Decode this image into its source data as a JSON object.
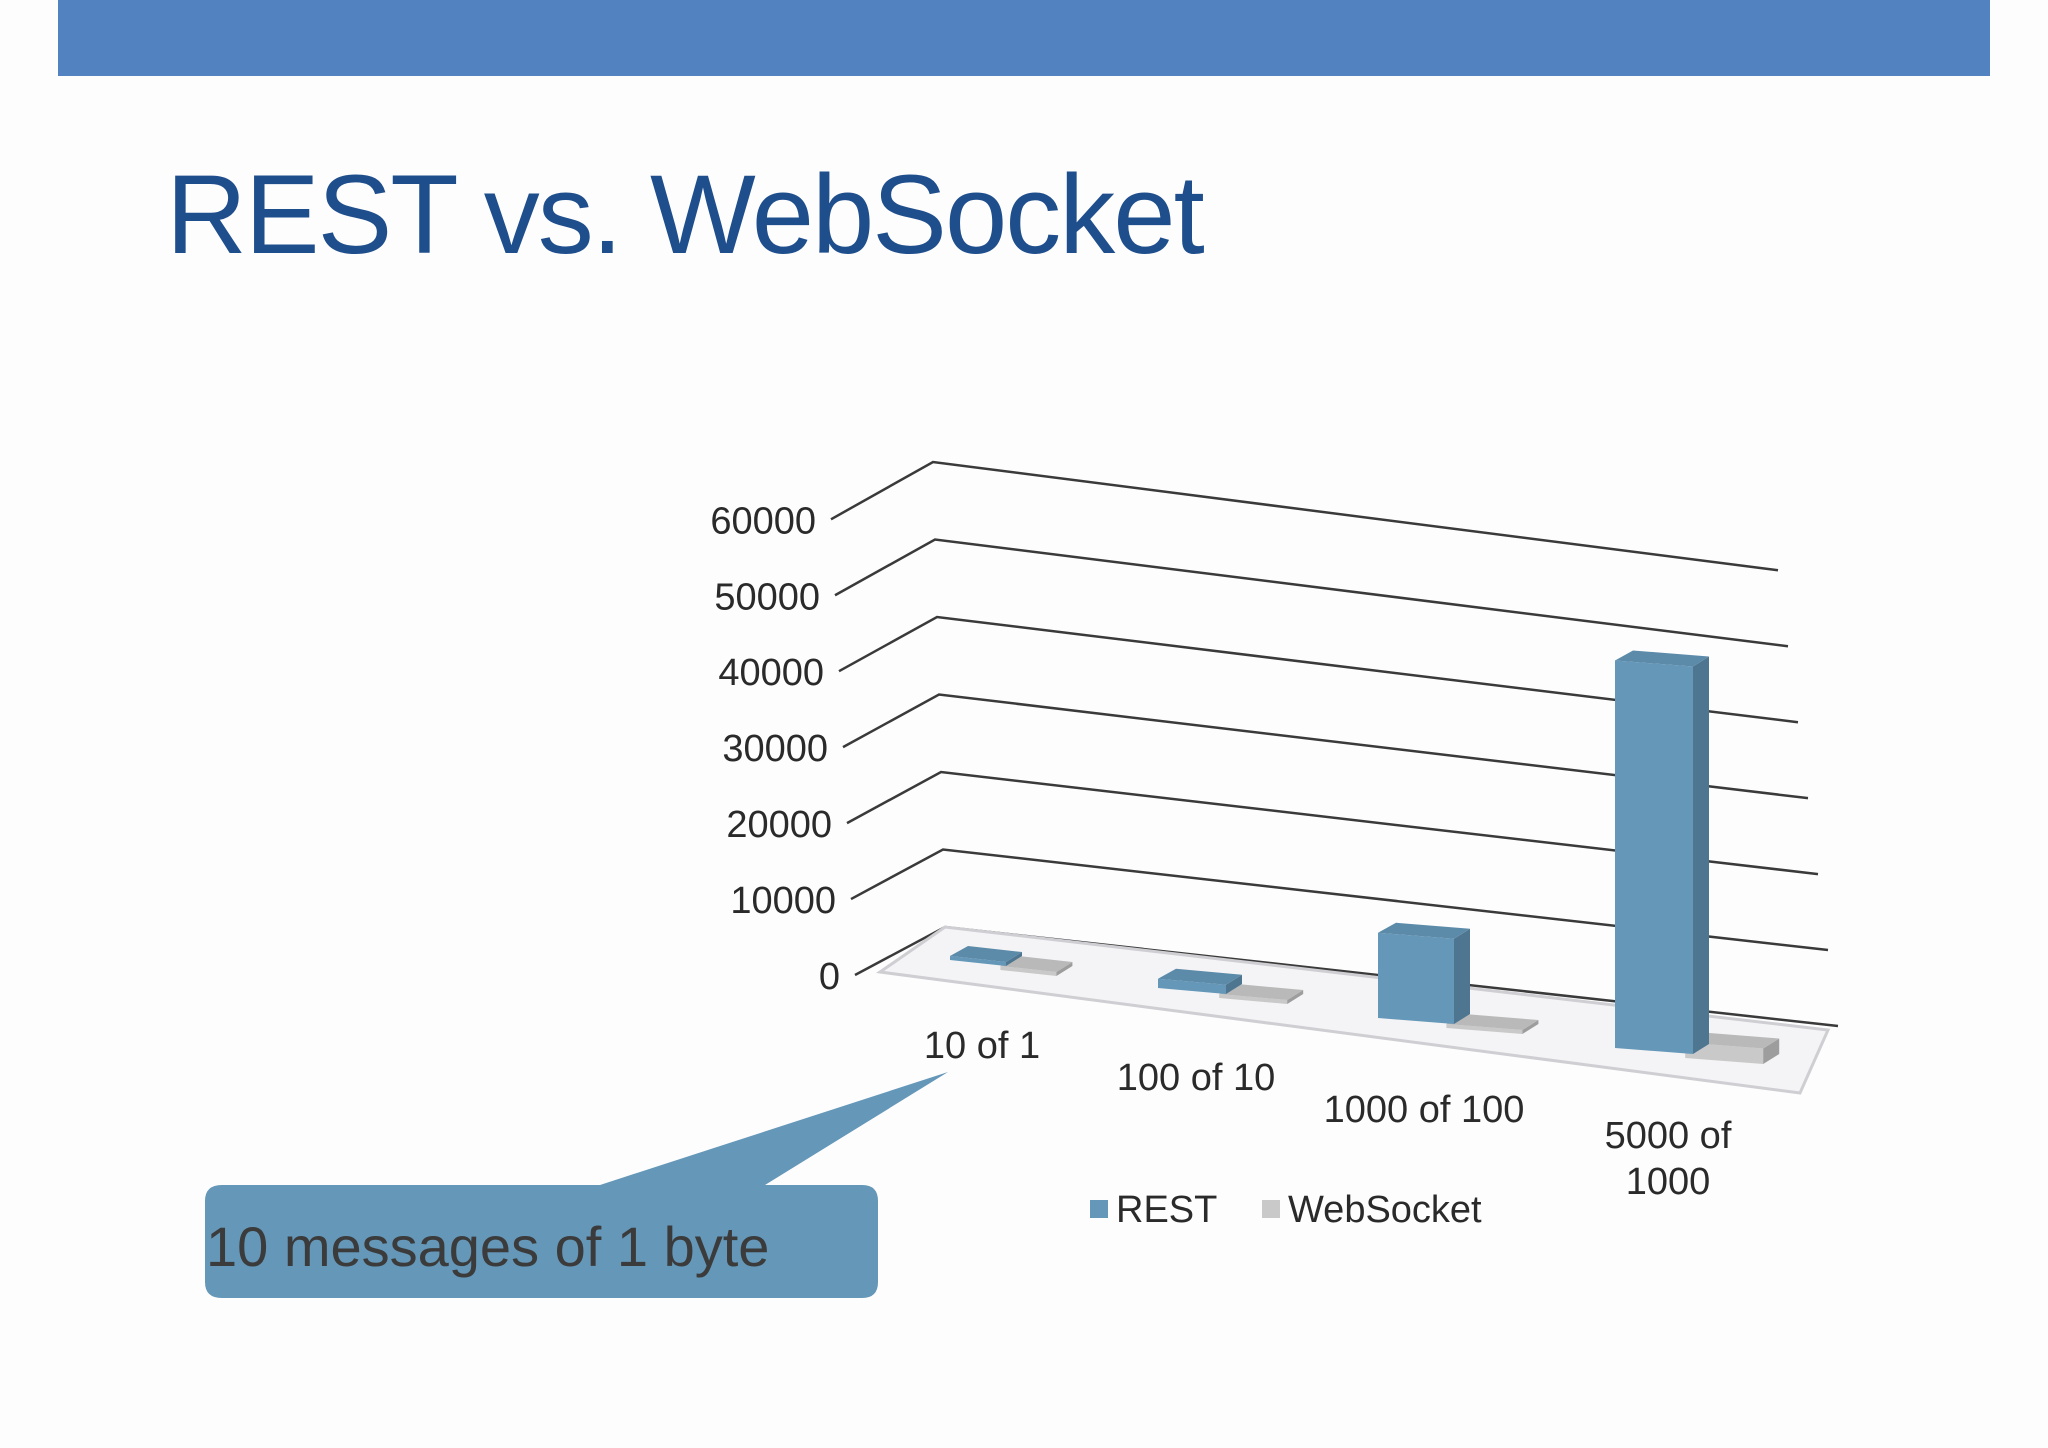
{
  "slide": {
    "title": "REST vs. WebSocket",
    "callout": "10 messages of 1 byte",
    "colors": {
      "bar_header": "#5282bf",
      "title": "#1f4e8c",
      "callout_bg": "#6497b8"
    }
  },
  "chart_data": {
    "type": "bar",
    "style": "3d-clustered-column",
    "categories": [
      "10 of 1",
      "100 of 10",
      "1000 of 100",
      "5000 of 1000"
    ],
    "category_label_lines": [
      [
        "10 of 1"
      ],
      [
        "100 of 10"
      ],
      [
        "1000 of 100"
      ],
      [
        "5000 of",
        "1000"
      ]
    ],
    "series": [
      {
        "name": "REST",
        "values": [
          120,
          1200,
          11000,
          50000
        ],
        "color": "#6497b8"
      },
      {
        "name": "WebSocket",
        "values": [
          30,
          100,
          500,
          2000
        ],
        "color": "#c9c9c9"
      }
    ],
    "ylim": [
      0,
      60000
    ],
    "yticks": [
      "0",
      "10000",
      "20000",
      "30000",
      "40000",
      "50000",
      "60000"
    ],
    "legend_position": "bottom",
    "grid": true
  }
}
